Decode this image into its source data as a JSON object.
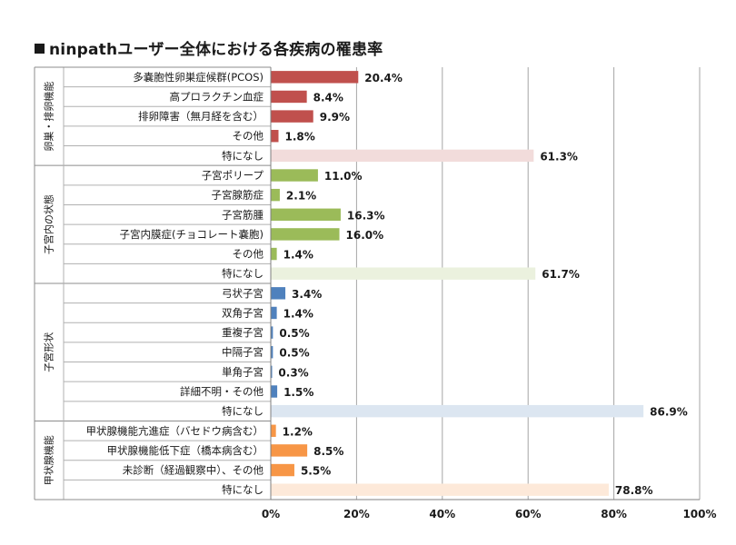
{
  "chart_data": {
    "type": "bar",
    "orientation": "horizontal",
    "title": "ninpathユーザー全体における各疾病の罹患率",
    "xlabel": "",
    "ylabel": "",
    "xlim": [
      0,
      100
    ],
    "x_ticks": [
      "0%",
      "20%",
      "40%",
      "60%",
      "80%",
      "100%"
    ],
    "grid": true,
    "value_suffix": "%",
    "groups": [
      {
        "name": "卵巣・排卵機能",
        "color": "#c0504d",
        "none_color": "#f2dcdb",
        "categories": [
          "多嚢胞性卵巣症候群(PCOS)",
          "高プロラクチン血症",
          "排卵障害（無月経を含む）",
          "その他",
          "特になし"
        ],
        "values": [
          20.4,
          8.4,
          9.9,
          1.8,
          61.3
        ]
      },
      {
        "name": "子宮内の状態",
        "color": "#9bbb59",
        "none_color": "#ebf1de",
        "categories": [
          "子宮ポリープ",
          "子宮腺筋症",
          "子宮筋腫",
          "子宮内膜症(チョコレート嚢胞)",
          "その他",
          "特になし"
        ],
        "values": [
          11.0,
          2.1,
          16.3,
          16.0,
          1.4,
          61.7
        ]
      },
      {
        "name": "子宮形状",
        "color": "#4f81bd",
        "none_color": "#dce6f1",
        "categories": [
          "弓状子宮",
          "双角子宮",
          "重複子宮",
          "中隔子宮",
          "単角子宮",
          "詳細不明・その他",
          "特になし"
        ],
        "values": [
          3.4,
          1.4,
          0.5,
          0.5,
          0.3,
          1.5,
          86.9
        ]
      },
      {
        "name": "甲状腺機能",
        "color": "#f79646",
        "none_color": "#fde9d9",
        "categories": [
          "甲状腺機能亢進症（バセドウ病含む）",
          "甲状腺機能低下症（橋本病含む）",
          "未診断（経過観察中）、その他",
          "特になし"
        ],
        "values": [
          1.2,
          8.5,
          5.5,
          78.8
        ]
      }
    ]
  }
}
